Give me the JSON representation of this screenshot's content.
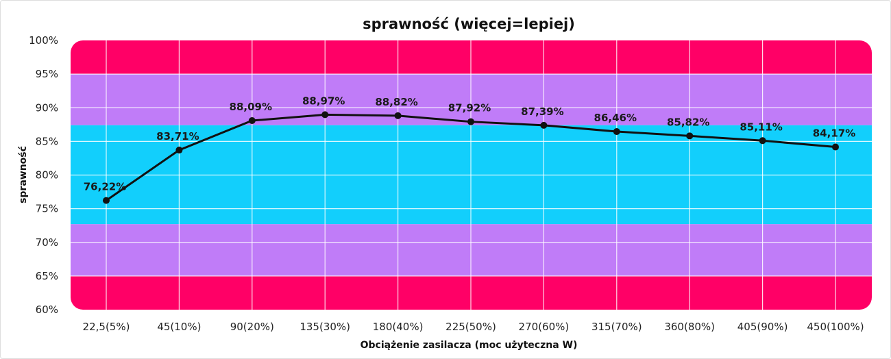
{
  "chart_data": {
    "type": "line",
    "title": "sprawność (więcej=lepiej)",
    "xlabel": "Obciążenie zasilacza (moc użyteczna W)",
    "ylabel": "sprawność",
    "categories": [
      "22,5(5%)",
      "45(10%)",
      "90(20%)",
      "135(30%)",
      "180(40%)",
      "225(50%)",
      "270(60%)",
      "315(70%)",
      "360(80%)",
      "405(90%)",
      "450(100%)"
    ],
    "series": [
      {
        "name": "sprawność",
        "values": [
          76.22,
          83.71,
          88.09,
          88.97,
          88.82,
          87.92,
          87.39,
          86.46,
          85.82,
          85.11,
          84.17
        ]
      }
    ],
    "data_labels": [
      "76,22%",
      "83,71%",
      "88,09%",
      "88,97%",
      "88,82%",
      "87,92%",
      "87,39%",
      "86,46%",
      "85,82%",
      "85,11%",
      "84,17%"
    ],
    "ylim": [
      60,
      100
    ],
    "yticks": [
      60,
      65,
      70,
      75,
      80,
      85,
      90,
      95,
      100
    ],
    "ytick_labels": [
      "60%",
      "65%",
      "70%",
      "75%",
      "80%",
      "85%",
      "90%",
      "95%",
      "100%"
    ],
    "grid": true,
    "bands": [
      {
        "from": 95,
        "to": 100,
        "color": "#ff0066"
      },
      {
        "from": 87.4,
        "to": 95,
        "color": "#c07cf8"
      },
      {
        "from": 72.7,
        "to": 87.4,
        "color": "#12cffc"
      },
      {
        "from": 65,
        "to": 72.7,
        "color": "#c07cf8"
      },
      {
        "from": 60,
        "to": 65,
        "color": "#ff0066"
      }
    ],
    "line_color": "#111111"
  }
}
